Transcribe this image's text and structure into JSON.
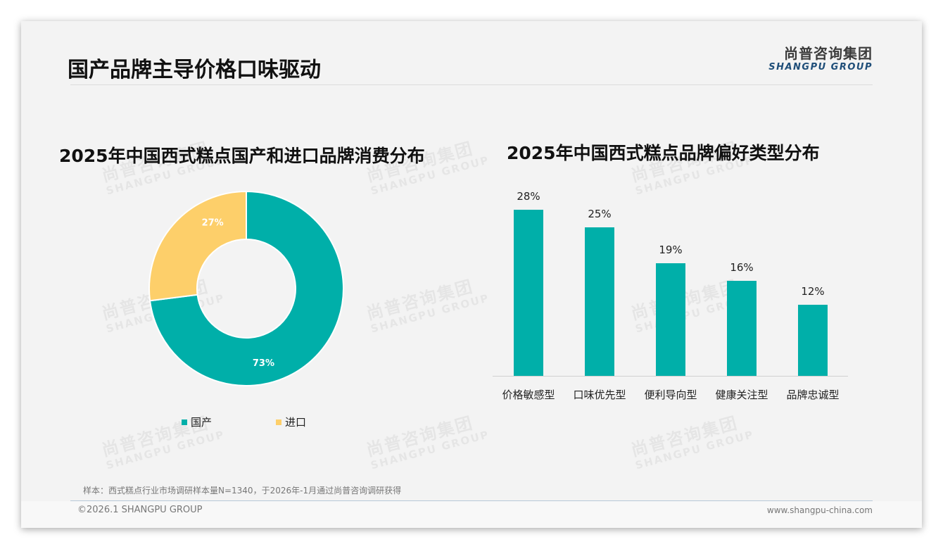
{
  "header": {
    "title": "国产品牌主导价格口味驱动",
    "logo_cn": "尚普咨询集团",
    "logo_en": "SHANGPU GROUP"
  },
  "colors": {
    "teal": "#00AFA9",
    "yellow": "#FDCF6A",
    "logo_blue": "#1F4E79"
  },
  "watermark": {
    "cn": "尚普咨询集团",
    "en": "SHANGPU GROUP"
  },
  "chart_data": [
    {
      "type": "pie",
      "donut": true,
      "title": "2025年中国西式糕点国产和进口品牌消费分布",
      "categories": [
        "国产",
        "进口"
      ],
      "values": [
        73,
        27
      ],
      "labels": [
        "73%",
        "27%"
      ],
      "colors": [
        "#00AFA9",
        "#FDCF6A"
      ],
      "legend_position": "bottom"
    },
    {
      "type": "bar",
      "title": "2025年中国西式糕点品牌偏好类型分布",
      "categories": [
        "价格敏感型",
        "口味优先型",
        "便利导向型",
        "健康关注型",
        "品牌忠诚型"
      ],
      "values": [
        28,
        25,
        19,
        16,
        12
      ],
      "labels": [
        "28%",
        "25%",
        "19%",
        "16%",
        "12%"
      ],
      "unit": "%",
      "color": "#00AFA9",
      "grid": false,
      "ylim": [
        0,
        30
      ]
    }
  ],
  "legend": {
    "items": [
      {
        "label": "国产",
        "color": "#00AFA9"
      },
      {
        "label": "进口",
        "color": "#FDCF6A"
      }
    ]
  },
  "footer": {
    "note": "样本：西式糕点行业市场调研样本量N=1340，于2026年-1月通过尚普咨询调研获得",
    "copyright": "©2026.1 SHANGPU GROUP",
    "website": "www.shangpu-china.com"
  }
}
